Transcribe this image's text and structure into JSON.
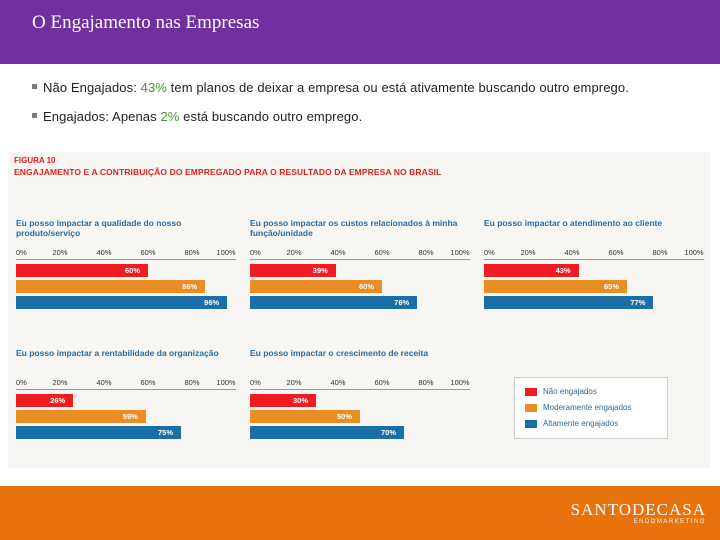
{
  "slide": {
    "title": "O Engajamento nas Empresas",
    "bullets": [
      {
        "prefix": "Não Engajados: ",
        "highlight": "43%",
        "suffix": " tem planos de deixar a empresa ou está ativamente buscando outro emprego."
      },
      {
        "prefix": "Engajados: Apenas ",
        "highlight": "2%",
        "suffix": " está buscando outro emprego."
      }
    ]
  },
  "figure": {
    "label": "FIGURA 10",
    "title": "ENGAJAMENTO E A CONTRIBUIÇÃO DO EMPREGADO PARA O RESULTADO DA EMPRESA NO BRASIL",
    "axis_ticks": [
      "0%",
      "20%",
      "40%",
      "60%",
      "80%",
      "100%"
    ]
  },
  "chart_data": [
    {
      "type": "bar",
      "title": "Eu posso impactar a qualidade do nosso produto/serviço",
      "categories": [
        "Não engajados",
        "Moderamente engajados",
        "Altamente engajados"
      ],
      "values": [
        60,
        86,
        96
      ],
      "value_labels": [
        "60%",
        "86%",
        "96%"
      ],
      "xlim": [
        0,
        100
      ]
    },
    {
      "type": "bar",
      "title": "Eu posso impactar os custos relacionados à minha função/unidade",
      "categories": [
        "Não engajados",
        "Moderamente engajados",
        "Altamente engajados"
      ],
      "values": [
        39,
        60,
        76
      ],
      "value_labels": [
        "39%",
        "60%",
        "76%"
      ],
      "xlim": [
        0,
        100
      ]
    },
    {
      "type": "bar",
      "title": "Eu posso impactar o atendimento ao cliente",
      "categories": [
        "Não engajados",
        "Moderamente engajados",
        "Altamente engajados"
      ],
      "values": [
        43,
        65,
        77
      ],
      "value_labels": [
        "43%",
        "65%",
        "77%"
      ],
      "xlim": [
        0,
        100
      ]
    },
    {
      "type": "bar",
      "title": "Eu posso impactar a rentabilidade da organização",
      "categories": [
        "Não engajados",
        "Moderamente engajados",
        "Altamente engajados"
      ],
      "values": [
        26,
        59,
        75
      ],
      "value_labels": [
        "26%",
        "59%",
        "75%"
      ],
      "xlim": [
        0,
        100
      ]
    },
    {
      "type": "bar",
      "title": "Eu posso impactar o crescimento de receita",
      "categories": [
        "Não engajados",
        "Moderamente engajados",
        "Altamente engajados"
      ],
      "values": [
        30,
        50,
        70
      ],
      "value_labels": [
        "30%",
        "50%",
        "70%"
      ],
      "xlim": [
        0,
        100
      ]
    }
  ],
  "legend": [
    {
      "label": "Não engajados",
      "color": "#ee1d23"
    },
    {
      "label": "Moderamente engajados",
      "color": "#e98e24"
    },
    {
      "label": "Altamente engajados",
      "color": "#1b6fa8"
    }
  ],
  "colors": {
    "title_bar": "#7030a0",
    "footer": "#e8720c",
    "highlight": "#3a9a2a"
  },
  "footer": {
    "logo_word": "SANTODECASA",
    "logo_sub": "ENDOMARKETING"
  }
}
